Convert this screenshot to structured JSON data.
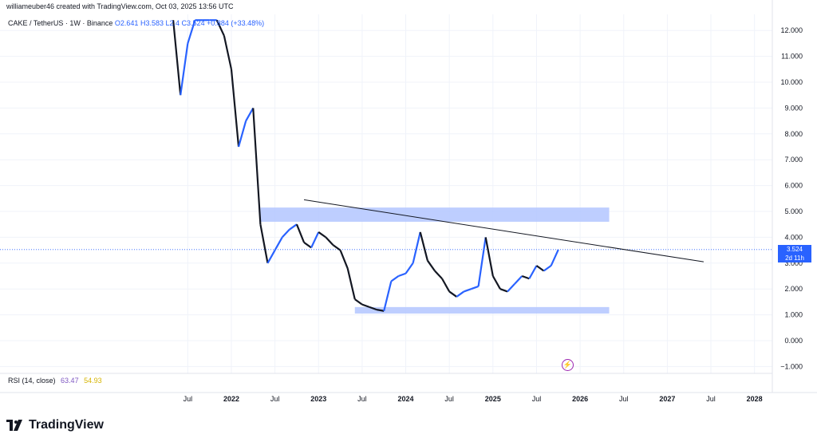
{
  "header": {
    "caption": "williameuber46 created with TradingView.com, Oct 03, 2025 13:56 UTC",
    "symbol": "CAKE / TetherUS · 1W · Binance",
    "open": "O2.641",
    "high": "H3.583",
    "low": "L2.4",
    "close": "C3.524",
    "change": "+0.884 (+33.48%)"
  },
  "rsi": {
    "label": "RSI (14, close)",
    "value1": "63.47",
    "value2": "54.93"
  },
  "brand": {
    "logo_icon": "tradingview-logo-icon",
    "name": "TradingView"
  },
  "price_badge": {
    "price": "3.524",
    "countdown": "2d 11h"
  },
  "colors": {
    "candle_up": "#2962ff",
    "candle_down": "#131722",
    "zone": "#b3c6ff",
    "price_line": "#2962ff",
    "trendline": "#131722",
    "rsi_v1": "#7e57c2",
    "rsi_v2": "#d6b400"
  },
  "flash_icon": "lightning-icon",
  "chart_data": {
    "type": "candlestick",
    "y_axis": {
      "position": "right",
      "ticks": [
        "12.000",
        "11.000",
        "10.000",
        "9.000",
        "8.000",
        "7.000",
        "6.000",
        "5.000",
        "4.000",
        "3.000",
        "2.000",
        "1.000",
        "0.000",
        "−1.000"
      ],
      "range": [
        -1.0,
        12.4
      ]
    },
    "x_axis": {
      "ticks": [
        "Jul",
        "2022",
        "Jul",
        "2023",
        "Jul",
        "2024",
        "Jul",
        "2025",
        "Jul",
        "2026",
        "Jul",
        "2027",
        "Jul",
        "2028"
      ],
      "range": [
        "2021-04",
        "2028-04"
      ]
    },
    "grid": true,
    "price_series": {
      "name": "CAKE / TetherUS",
      "points": [
        [
          "2021-05",
          12.4
        ],
        [
          "2021-06",
          9.5
        ],
        [
          "2021-07",
          11.5
        ],
        [
          "2021-08",
          12.4
        ],
        [
          "2021-09",
          12.4
        ],
        [
          "2021-10",
          12.4
        ],
        [
          "2021-11",
          12.4
        ],
        [
          "2021-12",
          11.8
        ],
        [
          "2022-01",
          10.5
        ],
        [
          "2022-02",
          7.5
        ],
        [
          "2022-03",
          8.5
        ],
        [
          "2022-04",
          9.0
        ],
        [
          "2022-05",
          4.5
        ],
        [
          "2022-06",
          3.0
        ],
        [
          "2022-07",
          3.5
        ],
        [
          "2022-08",
          4.0
        ],
        [
          "2022-09",
          4.3
        ],
        [
          "2022-10",
          4.5
        ],
        [
          "2022-11",
          3.8
        ],
        [
          "2022-12",
          3.6
        ],
        [
          "2023-01",
          4.2
        ],
        [
          "2023-02",
          4.0
        ],
        [
          "2023-03",
          3.7
        ],
        [
          "2023-04",
          3.5
        ],
        [
          "2023-05",
          2.8
        ],
        [
          "2023-06",
          1.6
        ],
        [
          "2023-07",
          1.4
        ],
        [
          "2023-08",
          1.3
        ],
        [
          "2023-09",
          1.2
        ],
        [
          "2023-10",
          1.15
        ],
        [
          "2023-11",
          2.3
        ],
        [
          "2023-12",
          2.5
        ],
        [
          "2024-01",
          2.6
        ],
        [
          "2024-02",
          3.0
        ],
        [
          "2024-03",
          4.2
        ],
        [
          "2024-04",
          3.1
        ],
        [
          "2024-05",
          2.7
        ],
        [
          "2024-06",
          2.4
        ],
        [
          "2024-07",
          1.9
        ],
        [
          "2024-08",
          1.7
        ],
        [
          "2024-09",
          1.9
        ],
        [
          "2024-10",
          2.0
        ],
        [
          "2024-11",
          2.1
        ],
        [
          "2024-12",
          4.0
        ],
        [
          "2025-01",
          2.5
        ],
        [
          "2025-02",
          2.0
        ],
        [
          "2025-03",
          1.9
        ],
        [
          "2025-04",
          2.2
        ],
        [
          "2025-05",
          2.5
        ],
        [
          "2025-06",
          2.4
        ],
        [
          "2025-07",
          2.9
        ],
        [
          "2025-08",
          2.7
        ],
        [
          "2025-09",
          2.9
        ],
        [
          "2025-10",
          3.52
        ]
      ]
    },
    "last_price": 3.524,
    "zones": [
      {
        "from": "2022-05",
        "to": "2026-05",
        "low": 4.6,
        "high": 5.15
      },
      {
        "from": "2023-06",
        "to": "2026-05",
        "low": 1.05,
        "high": 1.3
      }
    ],
    "trendline": {
      "from": [
        "2022-11",
        5.45
      ],
      "to": [
        "2027-06",
        3.05
      ]
    }
  }
}
